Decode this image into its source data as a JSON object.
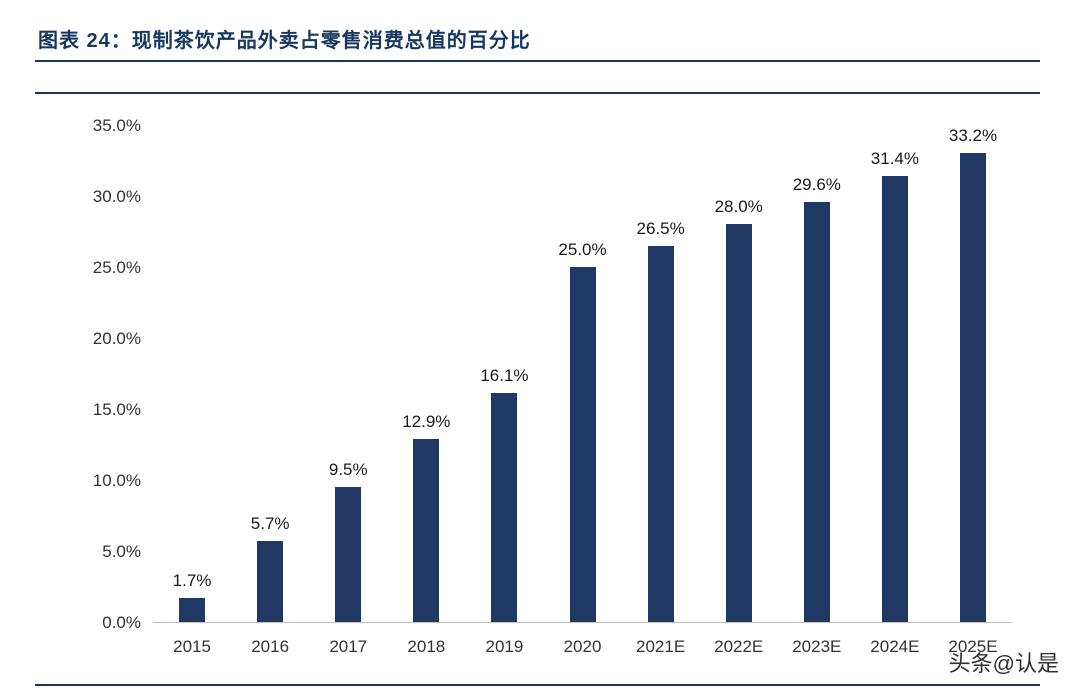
{
  "header": {
    "title": "图表 24：现制茶饮产品外卖占零售消费总值的百分比"
  },
  "watermark": "头条@认是",
  "chart_data": {
    "type": "bar",
    "title": "现制茶饮产品外卖占零售消费总值的百分比",
    "categories": [
      "2015",
      "2016",
      "2017",
      "2018",
      "2019",
      "2020",
      "2021E",
      "2022E",
      "2023E",
      "2024E",
      "2025E"
    ],
    "values": [
      1.7,
      5.7,
      9.5,
      12.9,
      16.1,
      25.0,
      26.5,
      28.0,
      29.6,
      31.4,
      33.2
    ],
    "value_labels": [
      "1.7%",
      "5.7%",
      "9.5%",
      "12.9%",
      "16.1%",
      "25.0%",
      "26.5%",
      "28.0%",
      "29.6%",
      "31.4%",
      "33.2%"
    ],
    "xlabel": "",
    "ylabel": "",
    "ylim": [
      0,
      35
    ],
    "ytick_step": 5,
    "yticks": [
      "0.0%",
      "5.0%",
      "10.0%",
      "15.0%",
      "20.0%",
      "25.0%",
      "30.0%",
      "35.0%"
    ],
    "bar_color": "#1F3864",
    "grid": false,
    "legend": "none"
  },
  "colors": {
    "accent": "#1F3864",
    "title_navy": "#17375E",
    "axis_text": "#333333"
  }
}
